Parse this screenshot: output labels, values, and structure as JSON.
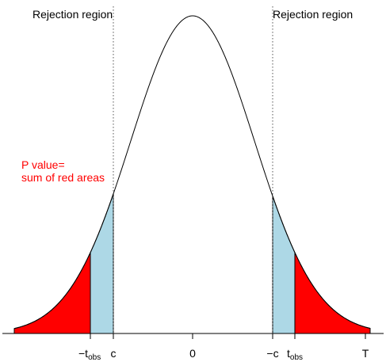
{
  "labels": {
    "rejection_left": "Rejection region",
    "rejection_right": "Rejection region",
    "pvalue_line1": "P value=",
    "pvalue_line2": "sum of red areas"
  },
  "ticks": {
    "neg_t_minus": "−t",
    "neg_t_sub": "obs",
    "c": "c",
    "zero": "0",
    "neg_c": "−c",
    "t": "t",
    "t_sub": "obs",
    "axis_T": "T"
  },
  "colors": {
    "rejection_fill": "#add8e6",
    "pvalue_fill": "#ff0000",
    "curve": "#000000",
    "pvalue_text": "#ff0000"
  }
}
